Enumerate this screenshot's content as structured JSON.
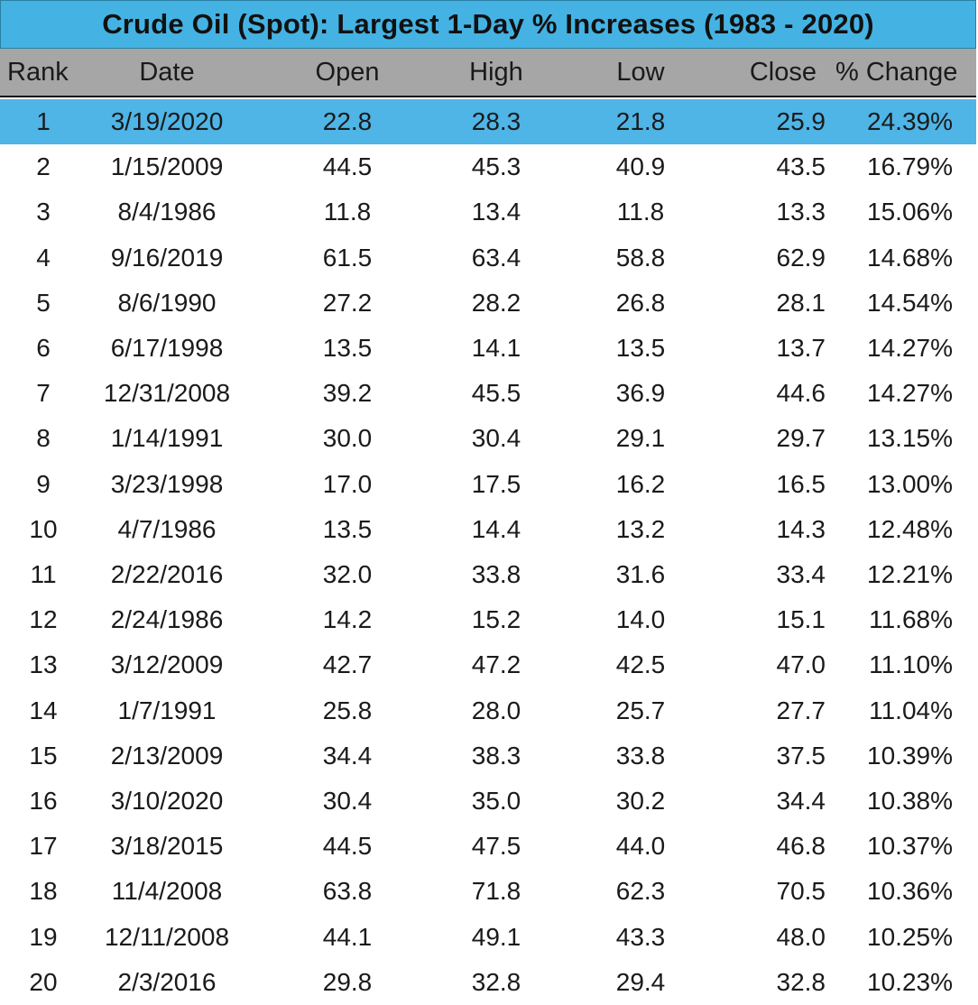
{
  "title": "Crude Oil (Spot): Largest 1-Day % Increases (1983 - 2020)",
  "columns": {
    "rank": "Rank",
    "date": "Date",
    "open": "Open",
    "high": "High",
    "low": "Low",
    "close": "Close",
    "pct": "% Change"
  },
  "highlight_color": "#4fb4e6",
  "title_color": "#44b3e3",
  "header_color": "#a6a6a6",
  "rows": [
    {
      "rank": "1",
      "date": "3/19/2020",
      "open": "22.8",
      "high": "28.3",
      "low": "21.8",
      "close": "25.9",
      "pct": "24.39%",
      "selected": true
    },
    {
      "rank": "2",
      "date": "1/15/2009",
      "open": "44.5",
      "high": "45.3",
      "low": "40.9",
      "close": "43.5",
      "pct": "16.79%"
    },
    {
      "rank": "3",
      "date": "8/4/1986",
      "open": "11.8",
      "high": "13.4",
      "low": "11.8",
      "close": "13.3",
      "pct": "15.06%"
    },
    {
      "rank": "4",
      "date": "9/16/2019",
      "open": "61.5",
      "high": "63.4",
      "low": "58.8",
      "close": "62.9",
      "pct": "14.68%"
    },
    {
      "rank": "5",
      "date": "8/6/1990",
      "open": "27.2",
      "high": "28.2",
      "low": "26.8",
      "close": "28.1",
      "pct": "14.54%"
    },
    {
      "rank": "6",
      "date": "6/17/1998",
      "open": "13.5",
      "high": "14.1",
      "low": "13.5",
      "close": "13.7",
      "pct": "14.27%"
    },
    {
      "rank": "7",
      "date": "12/31/2008",
      "open": "39.2",
      "high": "45.5",
      "low": "36.9",
      "close": "44.6",
      "pct": "14.27%"
    },
    {
      "rank": "8",
      "date": "1/14/1991",
      "open": "30.0",
      "high": "30.4",
      "low": "29.1",
      "close": "29.7",
      "pct": "13.15%"
    },
    {
      "rank": "9",
      "date": "3/23/1998",
      "open": "17.0",
      "high": "17.5",
      "low": "16.2",
      "close": "16.5",
      "pct": "13.00%"
    },
    {
      "rank": "10",
      "date": "4/7/1986",
      "open": "13.5",
      "high": "14.4",
      "low": "13.2",
      "close": "14.3",
      "pct": "12.48%"
    },
    {
      "rank": "11",
      "date": "2/22/2016",
      "open": "32.0",
      "high": "33.8",
      "low": "31.6",
      "close": "33.4",
      "pct": "12.21%"
    },
    {
      "rank": "12",
      "date": "2/24/1986",
      "open": "14.2",
      "high": "15.2",
      "low": "14.0",
      "close": "15.1",
      "pct": "11.68%"
    },
    {
      "rank": "13",
      "date": "3/12/2009",
      "open": "42.7",
      "high": "47.2",
      "low": "42.5",
      "close": "47.0",
      "pct": "11.10%"
    },
    {
      "rank": "14",
      "date": "1/7/1991",
      "open": "25.8",
      "high": "28.0",
      "low": "25.7",
      "close": "27.7",
      "pct": "11.04%"
    },
    {
      "rank": "15",
      "date": "2/13/2009",
      "open": "34.4",
      "high": "38.3",
      "low": "33.8",
      "close": "37.5",
      "pct": "10.39%"
    },
    {
      "rank": "16",
      "date": "3/10/2020",
      "open": "30.4",
      "high": "35.0",
      "low": "30.2",
      "close": "34.4",
      "pct": "10.38%"
    },
    {
      "rank": "17",
      "date": "3/18/2015",
      "open": "44.5",
      "high": "47.5",
      "low": "44.0",
      "close": "46.8",
      "pct": "10.37%"
    },
    {
      "rank": "18",
      "date": "11/4/2008",
      "open": "63.8",
      "high": "71.8",
      "low": "62.3",
      "close": "70.5",
      "pct": "10.36%"
    },
    {
      "rank": "19",
      "date": "12/11/2008",
      "open": "44.1",
      "high": "49.1",
      "low": "43.3",
      "close": "48.0",
      "pct": "10.25%"
    },
    {
      "rank": "20",
      "date": "2/3/2016",
      "open": "29.8",
      "high": "32.8",
      "low": "29.4",
      "close": "32.8",
      "pct": "10.23%"
    }
  ]
}
